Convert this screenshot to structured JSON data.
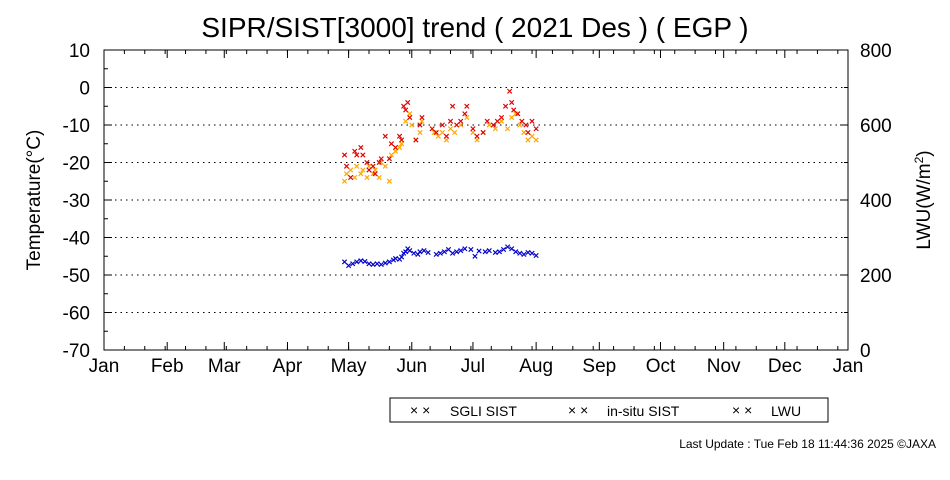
{
  "chart_data": {
    "type": "scatter",
    "title": "SIPR/SIST[3000] trend ( 2021 Des ) ( EGP )",
    "ylabel": "Temperature(°C)",
    "y2label_main": "LWU(W/m",
    "y2label_sup": "2",
    "y2label_end": ")",
    "ylim": [
      -70,
      10
    ],
    "y2lim": [
      0,
      800
    ],
    "yticks": [
      "10",
      "0",
      "-10",
      "-20",
      "-30",
      "-40",
      "-50",
      "-60",
      "-70"
    ],
    "y2ticks": [
      "800",
      "600",
      "400",
      "200",
      "0"
    ],
    "xticks": [
      "Jan",
      "Feb",
      "Mar",
      "Apr",
      "May",
      "Jun",
      "Jul",
      "Aug",
      "Sep",
      "Oct",
      "Nov",
      "Dec",
      "Jan"
    ],
    "grid": "horizontal dotted",
    "legend_position": "bottom",
    "series": [
      {
        "name": "SGLI SIST",
        "color": "#ffa500",
        "axis": "left",
        "points": [
          [
            118,
            -25
          ],
          [
            119,
            -23
          ],
          [
            121,
            -22
          ],
          [
            123,
            -24
          ],
          [
            124,
            -21
          ],
          [
            126,
            -23
          ],
          [
            127,
            -22
          ],
          [
            129,
            -24
          ],
          [
            130,
            -21
          ],
          [
            132,
            -23
          ],
          [
            133,
            -22
          ],
          [
            135,
            -24
          ],
          [
            136,
            -20
          ],
          [
            138,
            -21
          ],
          [
            140,
            -25
          ],
          [
            141,
            -18
          ],
          [
            143,
            -17
          ],
          [
            145,
            -16
          ],
          [
            146,
            -15
          ],
          [
            148,
            -9
          ],
          [
            150,
            -7
          ],
          [
            151,
            -10
          ],
          [
            153,
            -14
          ],
          [
            155,
            -12
          ],
          [
            156,
            -9
          ],
          [
            162,
            -12
          ],
          [
            164,
            -13
          ],
          [
            166,
            -12
          ],
          [
            168,
            -14
          ],
          [
            170,
            -11
          ],
          [
            172,
            -12
          ],
          [
            175,
            -10
          ],
          [
            178,
            -8
          ],
          [
            181,
            -12
          ],
          [
            183,
            -14
          ],
          [
            186,
            -12
          ],
          [
            189,
            -10
          ],
          [
            192,
            -11
          ],
          [
            195,
            -9
          ],
          [
            198,
            -11
          ],
          [
            200,
            -8
          ],
          [
            202,
            -7
          ],
          [
            204,
            -10
          ],
          [
            206,
            -12
          ],
          [
            208,
            -14
          ],
          [
            210,
            -13
          ],
          [
            212,
            -14
          ]
        ]
      },
      {
        "name": "in-situ SIST",
        "color": "#dd0000",
        "axis": "left",
        "points": [
          [
            118,
            -18
          ],
          [
            119,
            -21
          ],
          [
            121,
            -24
          ],
          [
            123,
            -17
          ],
          [
            124,
            -18
          ],
          [
            126,
            -16
          ],
          [
            127,
            -18
          ],
          [
            129,
            -20
          ],
          [
            130,
            -22
          ],
          [
            132,
            -21
          ],
          [
            133,
            -23
          ],
          [
            135,
            -20
          ],
          [
            136,
            -19
          ],
          [
            138,
            -13
          ],
          [
            140,
            -19
          ],
          [
            141,
            -15
          ],
          [
            143,
            -16
          ],
          [
            145,
            -13
          ],
          [
            146,
            -14
          ],
          [
            147,
            -5
          ],
          [
            148,
            -6
          ],
          [
            149,
            -4
          ],
          [
            150,
            -8
          ],
          [
            153,
            -14
          ],
          [
            155,
            -10
          ],
          [
            156,
            -8
          ],
          [
            161,
            -11
          ],
          [
            163,
            -12
          ],
          [
            166,
            -10
          ],
          [
            168,
            -13
          ],
          [
            170,
            -9
          ],
          [
            171,
            -5
          ],
          [
            173,
            -10
          ],
          [
            175,
            -9
          ],
          [
            177,
            -7
          ],
          [
            178,
            -5
          ],
          [
            181,
            -11
          ],
          [
            183,
            -13
          ],
          [
            186,
            -12
          ],
          [
            188,
            -9
          ],
          [
            191,
            -10
          ],
          [
            193,
            -9
          ],
          [
            195,
            -8
          ],
          [
            197,
            -5
          ],
          [
            199,
            -1
          ],
          [
            200,
            -4
          ],
          [
            201,
            -6
          ],
          [
            203,
            -7
          ],
          [
            205,
            -9
          ],
          [
            207,
            -10
          ],
          [
            208,
            -12
          ],
          [
            210,
            -9
          ],
          [
            212,
            -11
          ]
        ]
      },
      {
        "name": "LWU",
        "color": "#0000cc",
        "axis": "right",
        "points": [
          [
            118,
            235
          ],
          [
            120,
            225
          ],
          [
            122,
            230
          ],
          [
            124,
            235
          ],
          [
            126,
            238
          ],
          [
            128,
            236
          ],
          [
            130,
            230
          ],
          [
            132,
            228
          ],
          [
            134,
            230
          ],
          [
            136,
            228
          ],
          [
            138,
            232
          ],
          [
            140,
            235
          ],
          [
            142,
            240
          ],
          [
            143,
            244
          ],
          [
            145,
            242
          ],
          [
            146,
            248
          ],
          [
            147,
            258
          ],
          [
            148,
            262
          ],
          [
            149,
            270
          ],
          [
            150,
            265
          ],
          [
            152,
            258
          ],
          [
            154,
            255
          ],
          [
            155,
            262
          ],
          [
            157,
            265
          ],
          [
            159,
            260
          ],
          [
            163,
            255
          ],
          [
            165,
            258
          ],
          [
            167,
            262
          ],
          [
            169,
            268
          ],
          [
            171,
            258
          ],
          [
            173,
            262
          ],
          [
            175,
            265
          ],
          [
            177,
            270
          ],
          [
            180,
            268
          ],
          [
            182,
            250
          ],
          [
            184,
            264
          ],
          [
            187,
            262
          ],
          [
            189,
            265
          ],
          [
            192,
            260
          ],
          [
            194,
            262
          ],
          [
            196,
            268
          ],
          [
            198,
            275
          ],
          [
            200,
            270
          ],
          [
            202,
            262
          ],
          [
            204,
            258
          ],
          [
            206,
            255
          ],
          [
            208,
            260
          ],
          [
            210,
            258
          ],
          [
            212,
            252
          ]
        ]
      }
    ]
  },
  "legend": {
    "items": [
      {
        "label": "SGLI SIST",
        "marker": "× ×",
        "color": "#ffa500"
      },
      {
        "label": "in-situ SIST",
        "marker": "× ×",
        "color": "#dd0000"
      },
      {
        "label": "LWU",
        "marker": "× ×",
        "color": "#0000cc"
      }
    ]
  },
  "footer": {
    "update": "Last Update : Tue Feb 18 11:44:36 2025 ©JAXA"
  }
}
